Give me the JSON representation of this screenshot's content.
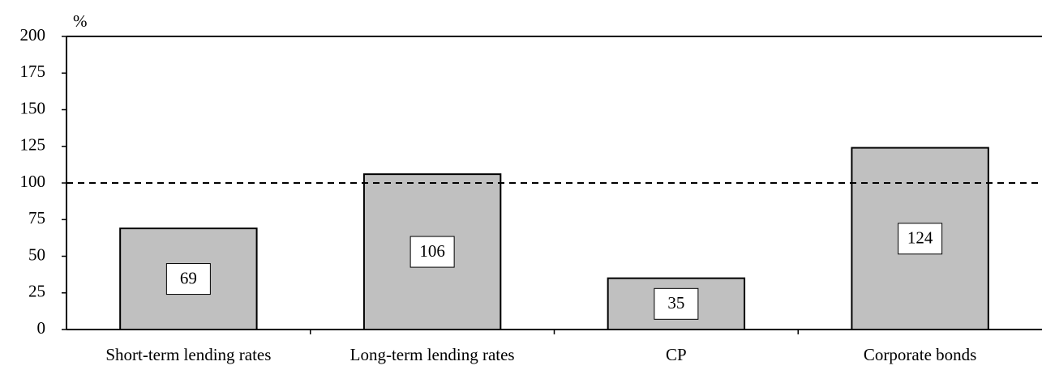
{
  "chart_data": {
    "type": "bar",
    "y_unit_label": "%",
    "categories": [
      "Short-term lending rates",
      "Long-term lending rates",
      "CP",
      "Corporate bonds"
    ],
    "values": [
      69,
      106,
      35,
      124
    ],
    "color": "#c0c0c0",
    "ylim": [
      0,
      200
    ],
    "yticks": [
      0,
      25,
      50,
      75,
      100,
      125,
      150,
      175,
      200
    ],
    "reference_line": 100
  }
}
